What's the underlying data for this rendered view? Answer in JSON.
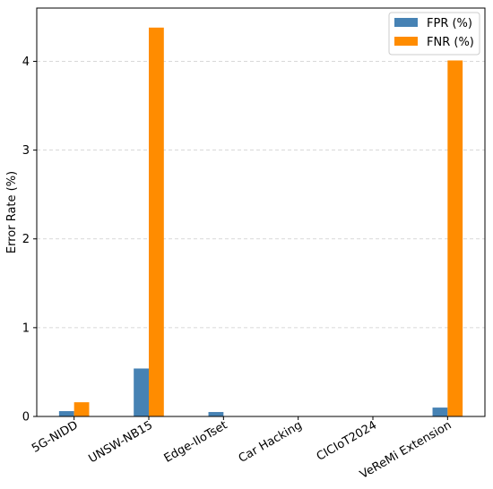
{
  "chart_data": {
    "type": "bar",
    "categories": [
      "5G-NIDD",
      "UNSW-NB15",
      "Edge-IIoTset",
      "Car Hacking",
      "CICIoT2024",
      "VeReMi Extension"
    ],
    "series": [
      {
        "name": "FPR (%)",
        "values": [
          0.06,
          0.54,
          0.05,
          0.0,
          0.0,
          0.1
        ],
        "color": "#4682b4"
      },
      {
        "name": "FNR (%)",
        "values": [
          0.16,
          4.38,
          0.0,
          0.0,
          0.0,
          4.01
        ],
        "color": "#ff8c00"
      }
    ],
    "title": "",
    "xlabel": "",
    "ylabel": "Error Rate (%)",
    "ylim": [
      0,
      4.6
    ],
    "yticks": [
      0,
      1,
      2,
      3,
      4
    ],
    "grid": "y-dashed",
    "legend": "top-right"
  }
}
